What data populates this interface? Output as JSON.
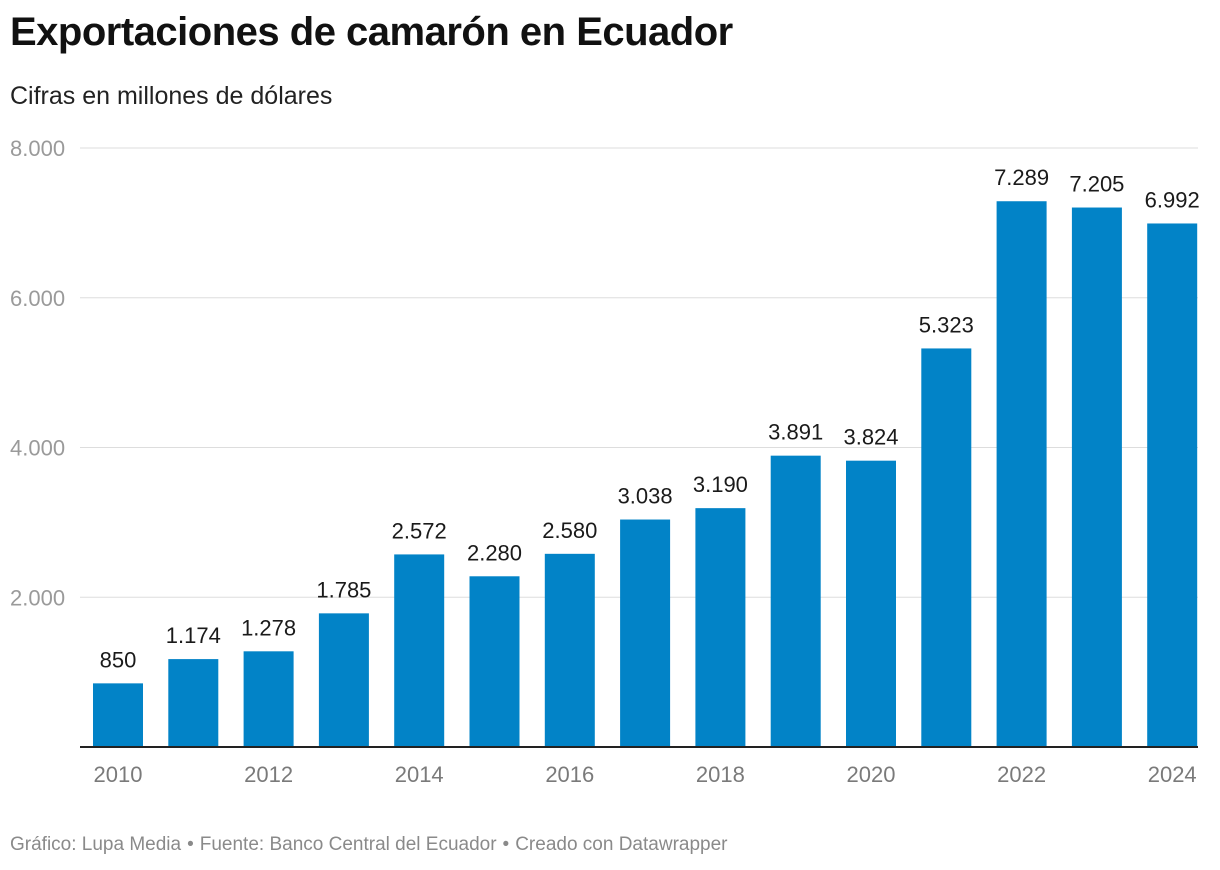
{
  "header": {
    "title": "Exportaciones de camarón en Ecuador",
    "subtitle": "Cifras en millones de dólares"
  },
  "footer": {
    "credit": "Gráfico: Lupa Media",
    "source": "Fuente: Banco Central del Ecuador",
    "tool": "Creado con Datawrapper",
    "separator": "•"
  },
  "colors": {
    "bar": "#0283c7"
  },
  "chart_data": {
    "type": "bar",
    "categories": [
      "2010",
      "2011",
      "2012",
      "2013",
      "2014",
      "2015",
      "2016",
      "2017",
      "2018",
      "2019",
      "2020",
      "2021",
      "2022",
      "2023",
      "2024"
    ],
    "values": [
      850,
      1174,
      1278,
      1785,
      2572,
      2280,
      2580,
      3038,
      3190,
      3891,
      3824,
      5323,
      7289,
      7205,
      6992
    ],
    "value_labels": [
      "850",
      "1.174",
      "1.278",
      "1.785",
      "2.572",
      "2.280",
      "2.580",
      "3.038",
      "3.190",
      "3.891",
      "3.824",
      "5.323",
      "7.289",
      "7.205",
      "6.992"
    ],
    "x_tick_labels": [
      "2010",
      "2012",
      "2014",
      "2016",
      "2018",
      "2020",
      "2022",
      "2024"
    ],
    "y_ticks": [
      2000,
      4000,
      6000,
      8000
    ],
    "y_tick_labels": [
      "2.000",
      "4.000",
      "6.000",
      "8.000"
    ],
    "ylim": [
      0,
      8000
    ],
    "title": "Exportaciones de camarón en Ecuador",
    "subtitle": "Cifras en millones de dólares",
    "xlabel": "",
    "ylabel": "",
    "grid": "horizontal",
    "legend": "none"
  }
}
